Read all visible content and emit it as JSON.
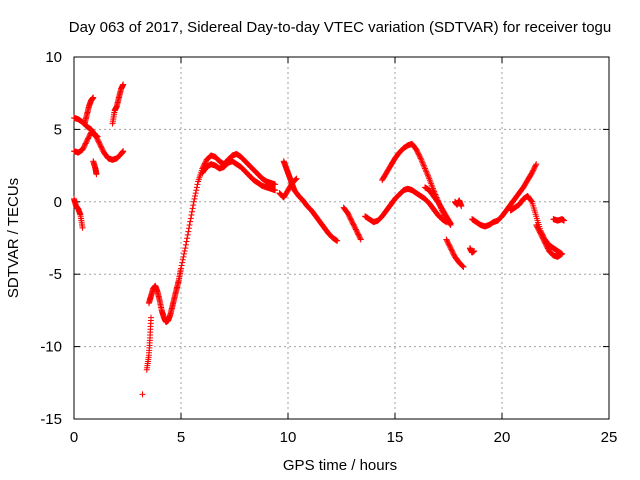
{
  "chart_data": {
    "type": "scatter",
    "title": "Day 063 of 2017, Sidereal Day-to-day VTEC variation (SDTVAR) for receiver togu",
    "xlabel": "GPS time / hours",
    "ylabel": "SDTVAR / TECUs",
    "xlim": [
      0,
      25
    ],
    "ylim": [
      -15,
      10
    ],
    "xticks": [
      0,
      5,
      10,
      15,
      20,
      25
    ],
    "yticks": [
      -15,
      -10,
      -5,
      0,
      5,
      10
    ],
    "grid": true,
    "marker": "+",
    "color": "#ff0000",
    "series": [
      {
        "name": "SDTVAR",
        "segments": [
          {
            "x": [
              0.0,
              0.2,
              0.4,
              0.6,
              0.8,
              1.0,
              1.1
            ],
            "y": [
              5.8,
              5.7,
              5.5,
              5.2,
              5.0,
              4.6,
              4.5
            ]
          },
          {
            "x": [
              0.0,
              0.1,
              0.2,
              0.3,
              0.4
            ],
            "y": [
              0.2,
              -0.3,
              -0.5,
              -0.9,
              -1.8
            ]
          },
          {
            "x": [
              0.0,
              0.2,
              0.4,
              0.6,
              0.8,
              1.0,
              1.2,
              1.4,
              1.6,
              1.8,
              2.0,
              2.2,
              2.3
            ],
            "y": [
              3.5,
              3.4,
              3.6,
              4.2,
              4.8,
              4.6,
              4.0,
              3.4,
              3.0,
              2.9,
              3.0,
              3.3,
              3.5
            ]
          },
          {
            "x": [
              0.5,
              0.6,
              0.7,
              0.8,
              0.9
            ],
            "y": [
              5.4,
              6.0,
              6.6,
              7.0,
              7.2
            ]
          },
          {
            "x": [
              0.9,
              1.0,
              1.05
            ],
            "y": [
              2.8,
              2.3,
              1.9
            ]
          },
          {
            "x": [
              1.8,
              1.9,
              2.0,
              2.1,
              2.2,
              2.3
            ],
            "y": [
              5.4,
              6.3,
              6.6,
              7.2,
              7.8,
              8.1
            ]
          },
          {
            "x": [
              3.2
            ],
            "y": [
              -13.3
            ]
          },
          {
            "x": [
              3.4,
              3.5,
              3.55,
              3.6
            ],
            "y": [
              -11.6,
              -10.6,
              -9.4,
              -8.0
            ]
          },
          {
            "x": [
              3.5,
              3.6,
              3.7,
              3.8,
              3.9,
              4.0,
              4.1,
              4.2,
              4.3,
              4.4,
              4.5,
              4.6,
              4.7,
              4.8,
              4.9,
              5.0,
              5.2,
              5.4,
              5.6,
              5.8,
              6.0,
              6.2,
              6.4,
              6.6,
              6.8,
              7.0,
              7.2,
              7.4,
              7.6,
              7.8,
              8.0,
              8.2,
              8.4,
              8.6,
              8.8,
              9.0,
              9.2,
              9.4
            ],
            "y": [
              -7.0,
              -6.5,
              -6.0,
              -5.8,
              -6.2,
              -6.8,
              -7.5,
              -8.0,
              -8.3,
              -8.2,
              -7.8,
              -7.2,
              -6.6,
              -6.0,
              -5.4,
              -4.6,
              -3.2,
              -1.6,
              0.0,
              1.4,
              2.3,
              2.9,
              3.2,
              3.1,
              2.8,
              2.6,
              2.9,
              3.2,
              3.3,
              3.1,
              2.8,
              2.5,
              2.2,
              1.9,
              1.6,
              1.4,
              1.3,
              1.2
            ]
          },
          {
            "x": [
              6.0,
              6.2,
              6.4,
              6.6,
              6.8,
              7.0,
              7.2,
              7.4,
              7.6,
              7.8,
              8.0,
              8.2,
              8.4,
              8.6,
              8.8,
              9.0,
              9.2,
              9.4
            ],
            "y": [
              2.0,
              2.4,
              2.6,
              2.5,
              2.3,
              2.4,
              2.7,
              2.8,
              2.6,
              2.4,
              2.1,
              1.8,
              1.5,
              1.3,
              1.1,
              1.0,
              0.9,
              0.8
            ]
          },
          {
            "x": [
              9.8,
              9.9,
              10.0,
              10.1,
              10.2,
              10.3,
              10.5,
              10.7,
              10.9,
              11.1,
              11.3,
              11.5,
              11.7,
              11.9,
              12.1,
              12.3
            ],
            "y": [
              2.8,
              2.4,
              2.0,
              1.6,
              1.2,
              0.8,
              0.4,
              0.1,
              -0.3,
              -0.6,
              -1.0,
              -1.4,
              -1.8,
              -2.2,
              -2.5,
              -2.7
            ]
          },
          {
            "x": [
              9.6,
              9.8,
              10.0,
              10.2,
              10.4
            ],
            "y": [
              0.6,
              0.3,
              0.8,
              1.3,
              1.6
            ]
          },
          {
            "x": [
              12.6,
              12.8,
              13.0,
              13.2,
              13.4
            ],
            "y": [
              -0.4,
              -0.8,
              -1.4,
              -2.0,
              -2.6
            ]
          },
          {
            "x": [
              13.6,
              13.8,
              14.0,
              14.2,
              14.4,
              14.6,
              14.8,
              15.0,
              15.2,
              15.4,
              15.6,
              15.8,
              16.0,
              16.2,
              16.4,
              16.6,
              16.8,
              17.0,
              17.2,
              17.4
            ],
            "y": [
              -1.0,
              -1.2,
              -1.4,
              -1.3,
              -1.0,
              -0.6,
              -0.2,
              0.2,
              0.5,
              0.8,
              0.9,
              0.8,
              0.6,
              0.4,
              0.2,
              -0.1,
              -0.5,
              -0.9,
              -1.2,
              -1.4
            ]
          },
          {
            "x": [
              14.4,
              14.6,
              14.8,
              15.0,
              15.2,
              15.4,
              15.6,
              15.8,
              16.0,
              16.2,
              16.4,
              16.6,
              16.8,
              17.0,
              17.2,
              17.4,
              17.6
            ],
            "y": [
              1.5,
              2.0,
              2.5,
              3.0,
              3.4,
              3.7,
              3.9,
              4.0,
              3.6,
              3.0,
              2.3,
              1.6,
              0.8,
              0.1,
              -0.6,
              -1.2,
              -1.6
            ]
          },
          {
            "x": [
              16.4,
              16.6,
              16.8,
              17.0,
              17.2,
              17.4,
              17.6
            ],
            "y": [
              1.0,
              0.8,
              0.4,
              0.0,
              -0.5,
              -1.0,
              -1.5
            ]
          },
          {
            "x": [
              17.4,
              17.6,
              17.8,
              18.0,
              18.2
            ],
            "y": [
              -2.6,
              -3.2,
              -3.8,
              -4.2,
              -4.5
            ]
          },
          {
            "x": [
              17.8,
              17.9,
              18.0,
              18.1
            ],
            "y": [
              0.0,
              -0.2,
              0.1,
              -0.3
            ]
          },
          {
            "x": [
              18.5,
              18.6,
              18.7
            ],
            "y": [
              -3.2,
              -3.5,
              -3.4
            ]
          },
          {
            "x": [
              18.6,
              18.8,
              19.0,
              19.2,
              19.4,
              19.6,
              19.8,
              20.0,
              20.2,
              20.4,
              20.6,
              20.8,
              21.0,
              21.2,
              21.4,
              21.6
            ],
            "y": [
              -1.2,
              -1.4,
              -1.6,
              -1.7,
              -1.6,
              -1.4,
              -1.3,
              -1.0,
              -0.6,
              -0.2,
              0.2,
              0.6,
              1.0,
              1.5,
              2.0,
              2.6
            ]
          },
          {
            "x": [
              20.4,
              20.6,
              20.8,
              21.0,
              21.2,
              21.4,
              21.6,
              21.8,
              22.0,
              22.2,
              22.4,
              22.6,
              22.8
            ],
            "y": [
              -0.6,
              -0.4,
              -0.2,
              0.2,
              0.4,
              0.0,
              -1.0,
              -2.0,
              -2.6,
              -3.0,
              -3.2,
              -3.4,
              -3.6
            ]
          },
          {
            "x": [
              21.6,
              21.8,
              22.0,
              22.2,
              22.4,
              22.6,
              22.8
            ],
            "y": [
              -1.6,
              -2.2,
              -2.8,
              -3.4,
              -3.7,
              -3.8,
              -3.6
            ]
          },
          {
            "x": [
              22.4,
              22.6,
              22.8,
              22.9
            ],
            "y": [
              -1.2,
              -1.3,
              -1.2,
              -1.3
            ]
          }
        ]
      }
    ]
  }
}
